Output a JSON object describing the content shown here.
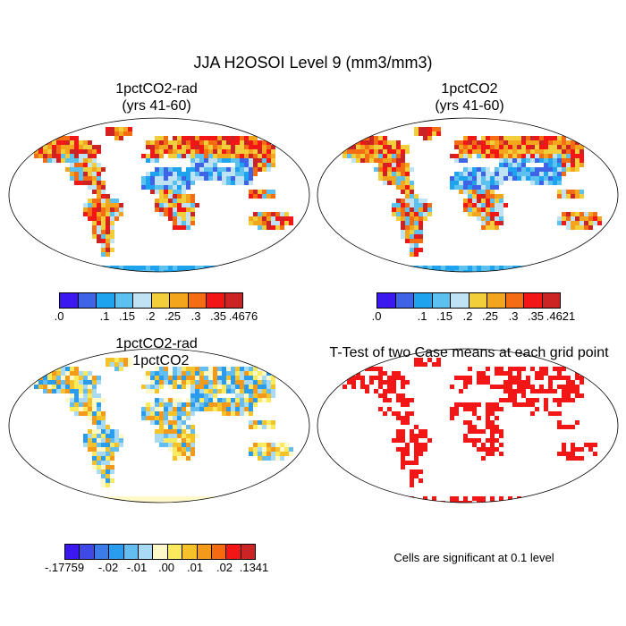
{
  "title": "JJA H2OSOI Level 9 (mm3/mm3)",
  "panels": [
    {
      "title": "1pctCO2-rad\n(yrs 41-60)",
      "palette": "abs",
      "colorbar": {
        "colors": [
          "#3b17f0",
          "#3f63e6",
          "#1ea3ee",
          "#5cc1ee",
          "#bfe3f5",
          "#f2cf3a",
          "#f2a51d",
          "#f46d12",
          "#f21616",
          "#cc2424"
        ],
        "labels": [
          ".0",
          ".1",
          ".15",
          ".2",
          ".25",
          ".3",
          ".35",
          ".4676"
        ]
      }
    },
    {
      "title": "1pctCO2\n(yrs 41-60)",
      "palette": "abs",
      "colorbar": {
        "colors": [
          "#3b17f0",
          "#3f63e6",
          "#1ea3ee",
          "#5cc1ee",
          "#bfe3f5",
          "#f2cf3a",
          "#f2a51d",
          "#f46d12",
          "#f21616",
          "#cc2424"
        ],
        "labels": [
          ".0",
          ".1",
          ".15",
          ".2",
          ".25",
          ".3",
          ".35",
          ".4621"
        ]
      }
    },
    {
      "title": "1pctCO2-rad\n- 1pctCO2",
      "palette": "diff",
      "colorbar": {
        "colors": [
          "#3b17f0",
          "#3f49e8",
          "#3b7ce8",
          "#2a9cf0",
          "#64bdf0",
          "#a8daf5",
          "#fff8c8",
          "#fbe95e",
          "#f6c22a",
          "#f39a1a",
          "#f46a11",
          "#f21616",
          "#cc2424"
        ],
        "labels": [
          "-.17759",
          "-.02",
          "-.01",
          ".00",
          ".01",
          ".02",
          ".1341"
        ]
      }
    },
    {
      "title": "T-Test of two Case means at each grid point",
      "palette": "ttest",
      "note": "Cells are significant at 0.1 level"
    }
  ]
}
